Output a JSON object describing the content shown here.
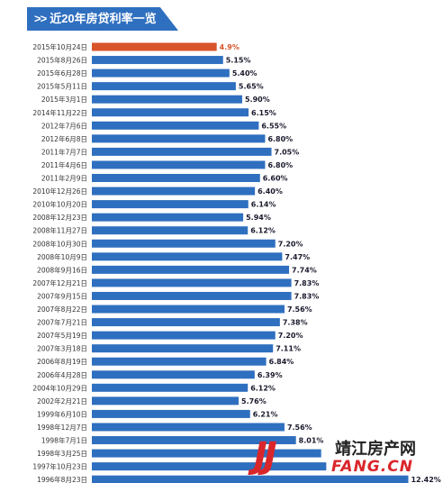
{
  "header": {
    "arrows": ">>",
    "title": "近20年房贷利率一览"
  },
  "logo": {
    "mark": "JJ",
    "name": "靖江房产网",
    "domain": "FANG.CN"
  },
  "colors": {
    "bar": "#2f6fbf",
    "highlight_bar": "#d9542b",
    "highlight_label": "#d9542b",
    "label": "#1a1a2e",
    "date": "#333333"
  },
  "chart_data": {
    "type": "bar",
    "orientation": "horizontal",
    "title": "近20年房贷利率一览",
    "xlabel": "",
    "ylabel": "",
    "xlim": [
      0,
      13
    ],
    "value_suffix": "%",
    "highlight_index": 0,
    "categories": [
      "2015年10月24日",
      "2015年8月26日",
      "2015年6月28日",
      "2015年5月11日",
      "2015年3月1日",
      "2014年11月22日",
      "2012年7月6日",
      "2012年6月8日",
      "2011年7月7日",
      "2011年4月6日",
      "2011年2月9日",
      "2010年12月26日",
      "2010年10月20日",
      "2008年12月23日",
      "2008年11月27日",
      "2008年10月30日",
      "2008年10月9日",
      "2008年9月16日",
      "2007年12月21日",
      "2007年9月15日",
      "2007年8月22日",
      "2007年7月21日",
      "2007年5月19日",
      "2007年3月18日",
      "2006年8月19日",
      "2006年4月28日",
      "2004年10月29日",
      "2002年2月21日",
      "1999年6月10日",
      "1998年12月7日",
      "1998年7月1日",
      "1998年3月25日",
      "1997年10月23日",
      "1996年8月23日"
    ],
    "labels": [
      "4.9%",
      "5.15%",
      "5.40%",
      "5.65%",
      "5.90%",
      "6.15%",
      "6.55%",
      "6.80%",
      "7.05%",
      "6.80%",
      "6.60%",
      "6.40%",
      "6.14%",
      "5.94%",
      "6.12%",
      "7.20%",
      "7.47%",
      "7.74%",
      "7.83%",
      "7.83%",
      "7.56%",
      "7.38%",
      "7.20%",
      "7.11%",
      "6.84%",
      "6.39%",
      "6.12%",
      "5.76%",
      "6.21%",
      "7.56%",
      "8.01%",
      "",
      "",
      "12.42%"
    ],
    "values": [
      4.9,
      5.15,
      5.4,
      5.65,
      5.9,
      6.15,
      6.55,
      6.8,
      7.05,
      6.8,
      6.6,
      6.4,
      6.14,
      5.94,
      6.12,
      7.2,
      7.47,
      7.74,
      7.83,
      7.83,
      7.56,
      7.38,
      7.2,
      7.11,
      6.84,
      6.39,
      6.12,
      5.76,
      6.21,
      7.56,
      8.01,
      9.0,
      9.2,
      12.42
    ]
  }
}
